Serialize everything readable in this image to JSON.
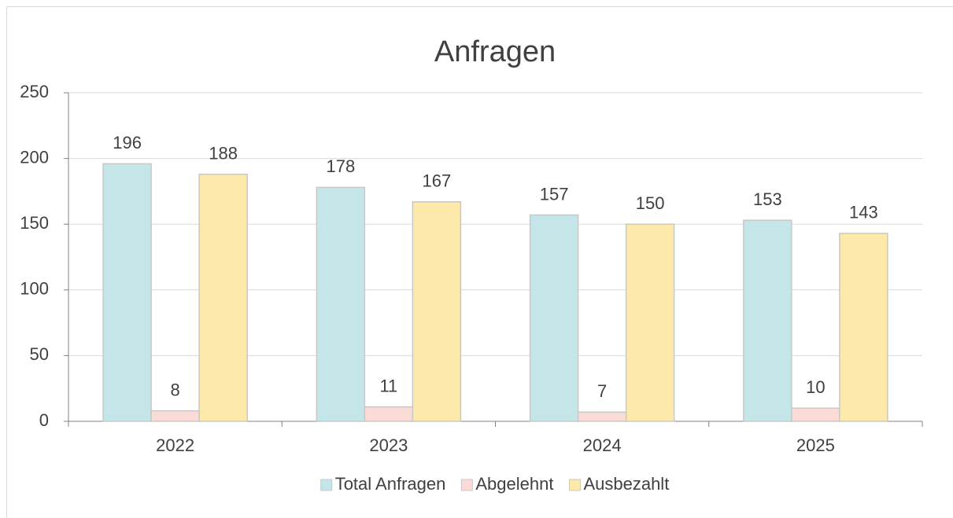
{
  "chart_data": {
    "type": "bar",
    "title": "Anfragen",
    "categories": [
      "2022",
      "2023",
      "2024",
      "2025"
    ],
    "series": [
      {
        "name": "Total Anfragen",
        "color": "#c5e6e8",
        "values": [
          196,
          178,
          157,
          153
        ]
      },
      {
        "name": "Abgelehnt",
        "color": "#fbdbd5",
        "values": [
          8,
          11,
          7,
          10
        ]
      },
      {
        "name": "Ausbezahlt",
        "color": "#fde9a9",
        "values": [
          188,
          167,
          150,
          143
        ]
      }
    ],
    "ylim": [
      0,
      250
    ],
    "yticks": [
      0,
      50,
      100,
      150,
      200,
      250
    ],
    "grid": true,
    "legend": "bottom"
  }
}
